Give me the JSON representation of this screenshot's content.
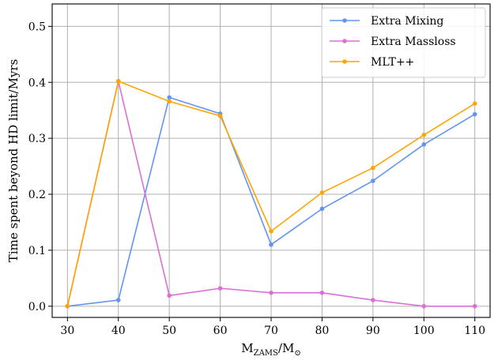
{
  "chart_data": {
    "type": "line",
    "xlabel_main": "M",
    "xlabel_sub": "ZAMS",
    "xlabel_sep": "/M",
    "xlabel_sun": "⊙",
    "ylabel": "Time spent beyond HD limit/Myrs",
    "xlim": [
      27,
      113
    ],
    "ylim": [
      -0.02,
      0.54
    ],
    "x_ticks": [
      30,
      40,
      50,
      60,
      70,
      80,
      90,
      100,
      110
    ],
    "x_tick_labels": [
      "30",
      "40",
      "50",
      "60",
      "70",
      "80",
      "90",
      "100",
      "110"
    ],
    "y_ticks": [
      0.0,
      0.1,
      0.2,
      0.3,
      0.4,
      0.5
    ],
    "y_tick_labels": [
      "0.0",
      "0.1",
      "0.2",
      "0.3",
      "0.4",
      "0.5"
    ],
    "grid": true,
    "legend_position": "top-right",
    "x": [
      30,
      40,
      50,
      60,
      70,
      80,
      90,
      100,
      110
    ],
    "series": [
      {
        "name": "Extra Mixing",
        "color": "#6495ED",
        "values": [
          0.0,
          0.011,
          0.373,
          0.344,
          0.11,
          0.174,
          0.224,
          0.289,
          0.343
        ]
      },
      {
        "name": "Extra Massloss",
        "color": "#DA70D6",
        "values": [
          0.0,
          0.402,
          0.019,
          0.032,
          0.024,
          0.024,
          0.011,
          0.0,
          0.0
        ]
      },
      {
        "name": "MLT++",
        "color": "#FFA500",
        "values": [
          0.0,
          0.402,
          0.366,
          0.34,
          0.134,
          0.203,
          0.247,
          0.306,
          0.362
        ]
      }
    ]
  }
}
